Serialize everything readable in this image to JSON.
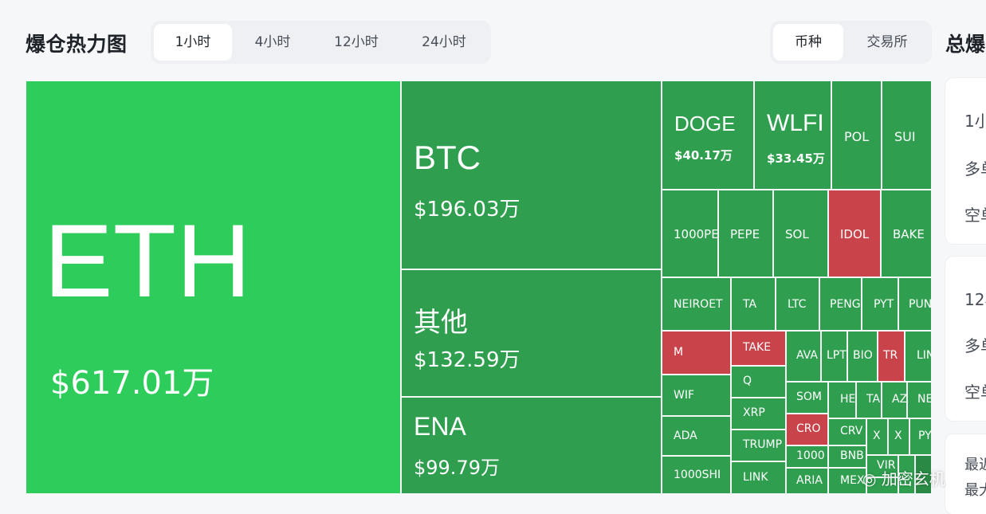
{
  "header": {
    "title": "爆仓热力图",
    "time_tabs": [
      "1小时",
      "4小时",
      "12小时",
      "24小时"
    ],
    "active_time_tab": "1小时",
    "group_tabs": [
      "币种",
      "交易所"
    ],
    "active_group_tab": "币种",
    "right_title": "总爆"
  },
  "treemap": {
    "big": [
      {
        "symbol": "ETH",
        "value": "$617.01万"
      },
      {
        "symbol": "BTC",
        "value": "$196.03万"
      },
      {
        "symbol": "其他",
        "value": "$132.59万"
      },
      {
        "symbol": "ENA",
        "value": "$99.79万"
      },
      {
        "symbol": "DOGE",
        "value": "$40.17万"
      },
      {
        "symbol": "WLFI",
        "value": "$33.45万"
      }
    ],
    "small": [
      "POL",
      "SUI",
      "1000PE",
      "PEPE",
      "SOL",
      "IDOL",
      "BAKE",
      "NEIROET",
      "TA",
      "LTC",
      "PENG",
      "PYT",
      "PUN",
      "M",
      "TAKE",
      "AVA",
      "LPT",
      "BIO",
      "TR",
      "LIN",
      "WIF",
      "Q",
      "SOM",
      "HE",
      "TA",
      "AZ",
      "NE",
      "XRP",
      "CRO",
      "CRV",
      "X",
      "X",
      "PY",
      "ADA",
      "TRUMP",
      "1000",
      "BNB",
      "VIR",
      "1000SHI",
      "LINK",
      "ARIA",
      "MEX"
    ]
  },
  "side": {
    "card1_lines": [
      "1小",
      "多单",
      "空单"
    ],
    "card2_lines": [
      "12小",
      "多单",
      "空单"
    ],
    "card3_lines": [
      "最近",
      "最大"
    ]
  },
  "watermark": "◎ 加密玄机",
  "colors": {
    "big_green": "#2ecc5b",
    "green": "#2f9f4f",
    "red": "#c8434a"
  }
}
